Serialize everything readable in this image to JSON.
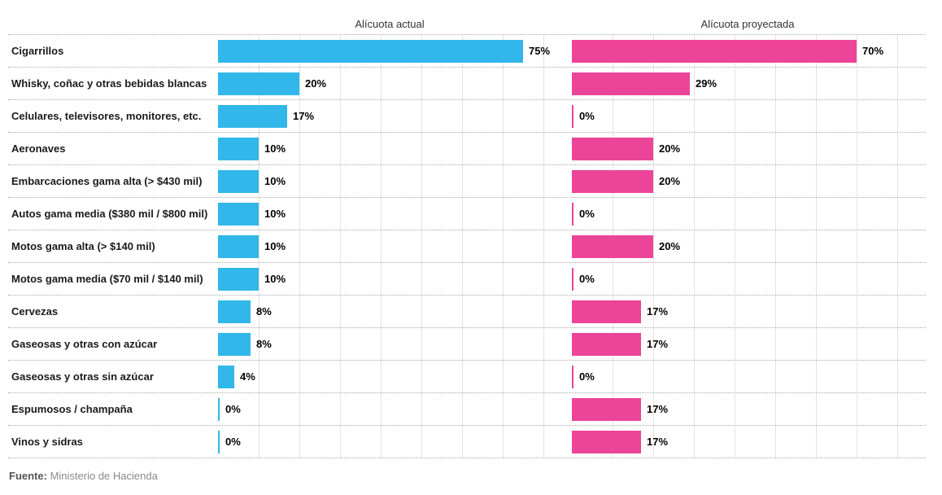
{
  "header": {
    "left_title": "Alícuota actual",
    "right_title": "Alícuota proyectada"
  },
  "chart_data": {
    "type": "bar",
    "orientation": "horizontal",
    "title": "",
    "categories": [
      "Cigarrillos",
      "Whisky, coñac y otras bebidas blancas",
      "Celulares, televisores, monitores, etc.",
      "Aeronaves",
      "Embarcaciones gama alta (> $430 mil)",
      "Autos gama media ($380 mil / $800 mil)",
      "Motos gama alta (> $140 mil)",
      "Motos gama media ($70 mil / $140 mil)",
      "Cervezas",
      "Gaseosas y otras con azúcar",
      "Gaseosas y otras sin azúcar",
      "Espumosos / champaña",
      "Vinos y sidras"
    ],
    "series": [
      {
        "name": "Alícuota actual",
        "color": "#31b7e9",
        "values": [
          75,
          20,
          17,
          10,
          10,
          10,
          10,
          10,
          8,
          8,
          4,
          0,
          0
        ]
      },
      {
        "name": "Alícuota proyectada",
        "color": "#ec4499",
        "values": [
          70,
          29,
          0,
          20,
          20,
          0,
          20,
          0,
          17,
          17,
          0,
          17,
          17
        ]
      }
    ],
    "value_suffix": "%",
    "xlim": [
      0,
      85
    ],
    "gridlines": "vertical, every 10%",
    "legend_position": "panel titles above each column",
    "colors": {
      "actual": "#31b7e9",
      "proyectada": "#ec4499",
      "grid": "#e4e4e4",
      "row_separator": "#a9a9a9"
    }
  },
  "footer": {
    "source_label": "Fuente:",
    "source_text": "Ministerio de Hacienda"
  }
}
